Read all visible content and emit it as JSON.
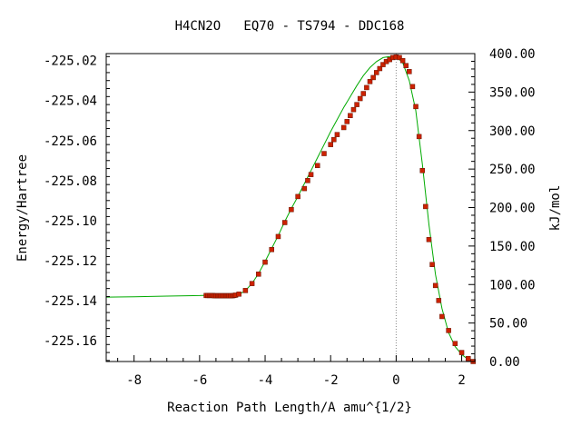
{
  "chart_data": {
    "type": "line",
    "title": "H4CN2O   EQ70 - TS794 - DDC168",
    "xlabel": "Reaction Path Length/A amu^{1/2}",
    "ylabel": "Energy/Hartree",
    "y2label": "kJ/mol",
    "xlim": [
      -8.85,
      2.4
    ],
    "ylim": [
      -225.1705,
      -225.0165
    ],
    "y2lim": [
      0.0,
      400.0
    ],
    "x_ticks": [
      -8,
      -6,
      -4,
      -2,
      0,
      2
    ],
    "x_tick_labels": [
      "-8",
      "-6",
      "-4",
      "-2",
      "0",
      "2"
    ],
    "y_ticks": [
      -225.02,
      -225.04,
      -225.06,
      -225.08,
      -225.1,
      -225.12,
      -225.14,
      -225.16
    ],
    "y_tick_labels": [
      "-225.02",
      "-225.04",
      "-225.06",
      "-225.08",
      "-225.10",
      "-225.12",
      "-225.14",
      "-225.16"
    ],
    "y2_ticks": [
      400,
      350,
      300,
      250,
      200,
      150,
      100,
      50,
      0
    ],
    "y2_tick_labels": [
      "400.00",
      "350.00",
      "300.00",
      "250.00",
      "200.00",
      "150.00",
      "100.00",
      "50.00",
      "0.00"
    ],
    "ts_marker_x": 0,
    "line_color": "#00aa00",
    "marker_color": "#cc2200",
    "line_x": [
      -8.85,
      -8.0,
      -7.0,
      -6.0,
      -5.8,
      -5.4,
      -5.0,
      -4.8,
      -4.6,
      -4.4,
      -4.2,
      -4.0,
      -3.8,
      -3.6,
      -3.4,
      -3.2,
      -3.0,
      -2.8,
      -2.6,
      -2.4,
      -2.2,
      -2.0,
      -1.8,
      -1.6,
      -1.4,
      -1.2,
      -1.0,
      -0.8,
      -0.6,
      -0.4,
      -0.2,
      0.0,
      0.2,
      0.4,
      0.6,
      0.8,
      1.0,
      1.2,
      1.4,
      1.6,
      1.8,
      2.0,
      2.2,
      2.35
    ],
    "line_y": [
      -225.1383,
      -225.1381,
      -225.1378,
      -225.1375,
      -225.1374,
      -225.1376,
      -225.1376,
      -225.137,
      -225.135,
      -225.1315,
      -225.1265,
      -225.1205,
      -225.114,
      -225.1075,
      -225.1005,
      -225.094,
      -225.088,
      -225.0815,
      -225.075,
      -225.0685,
      -225.062,
      -225.0555,
      -225.0495,
      -225.0435,
      -225.038,
      -225.0325,
      -225.0275,
      -225.0235,
      -225.0205,
      -225.0185,
      -225.018,
      -225.018,
      -225.021,
      -225.03,
      -225.045,
      -225.072,
      -225.102,
      -225.127,
      -225.144,
      -225.156,
      -225.163,
      -225.167,
      -225.1695,
      -225.1705
    ],
    "markers_x": [
      -5.8,
      -5.75,
      -5.7,
      -5.65,
      -5.6,
      -5.55,
      -5.5,
      -5.45,
      -5.4,
      -5.35,
      -5.3,
      -5.25,
      -5.2,
      -5.15,
      -5.1,
      -5.05,
      -5.0,
      -4.95,
      -4.9,
      -4.8,
      -4.6,
      -4.4,
      -4.2,
      -4.0,
      -3.8,
      -3.6,
      -3.4,
      -3.2,
      -3.0,
      -2.8,
      -2.7,
      -2.6,
      -2.4,
      -2.2,
      -2.0,
      -1.9,
      -1.8,
      -1.6,
      -1.5,
      -1.4,
      -1.3,
      -1.2,
      -1.1,
      -1.0,
      -0.9,
      -0.8,
      -0.7,
      -0.6,
      -0.5,
      -0.4,
      -0.3,
      -0.2,
      -0.1,
      0.0,
      0.1,
      0.2,
      0.3,
      0.4,
      0.5,
      0.6,
      0.7,
      0.8,
      0.9,
      1.0,
      1.1,
      1.2,
      1.3,
      1.4,
      1.6,
      1.8,
      2.0,
      2.2,
      2.35
    ],
    "markers_y": [
      -225.1375,
      -225.1375,
      -225.1375,
      -225.1375,
      -225.1375,
      -225.1376,
      -225.1376,
      -225.1376,
      -225.1376,
      -225.1376,
      -225.1376,
      -225.1376,
      -225.1376,
      -225.1376,
      -225.1376,
      -225.1376,
      -225.1376,
      -225.1375,
      -225.1373,
      -225.1368,
      -225.135,
      -225.1315,
      -225.1268,
      -225.1208,
      -225.1145,
      -225.108,
      -225.101,
      -225.0945,
      -225.088,
      -225.084,
      -225.08,
      -225.077,
      -225.0725,
      -225.0665,
      -225.062,
      -225.0595,
      -225.057,
      -225.0535,
      -225.0505,
      -225.0475,
      -225.0445,
      -225.042,
      -225.039,
      -225.0365,
      -225.0335,
      -225.0305,
      -225.0285,
      -225.026,
      -225.024,
      -225.022,
      -225.0205,
      -225.0195,
      -225.0185,
      -225.0182,
      -225.0185,
      -225.02,
      -225.0225,
      -225.0255,
      -225.033,
      -225.043,
      -225.058,
      -225.075,
      -225.093,
      -225.1095,
      -225.122,
      -225.1325,
      -225.14,
      -225.148,
      -225.155,
      -225.1615,
      -225.166,
      -225.169,
      -225.1705
    ]
  }
}
